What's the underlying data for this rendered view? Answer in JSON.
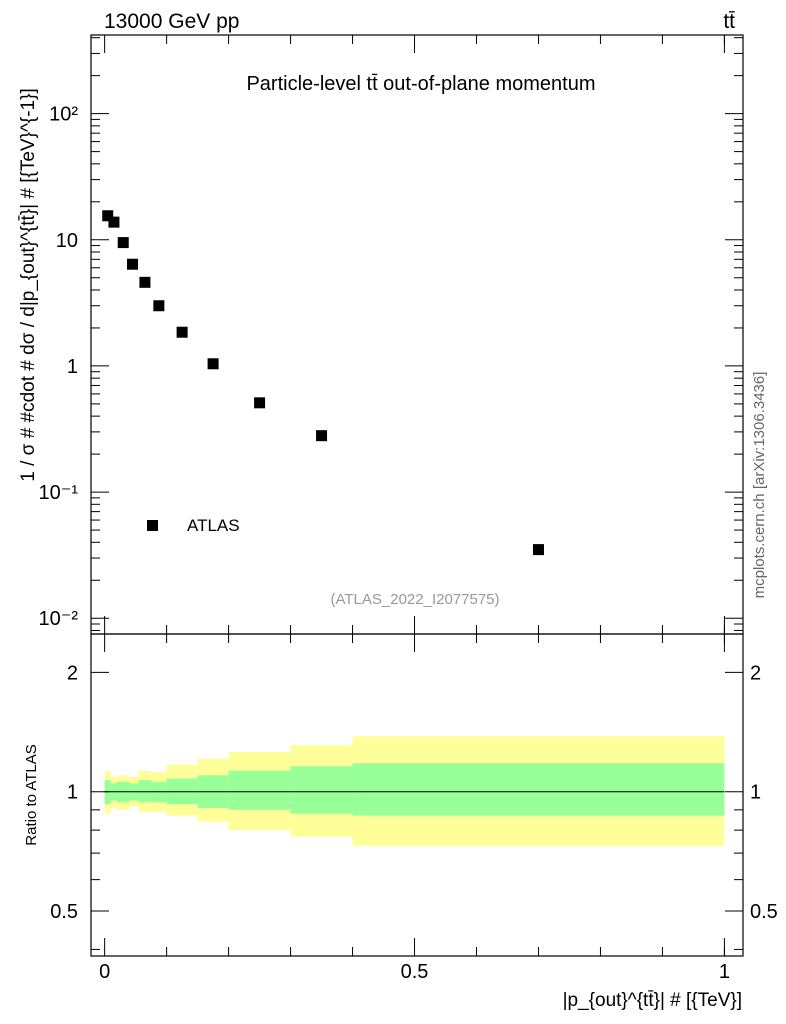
{
  "header": {
    "energy_label": "13000 GeV pp",
    "process_label": "tt̄"
  },
  "side_label": "mcplots.cern.ch [arXiv:1306.3436]",
  "chart_data": [
    {
      "type": "scatter",
      "title": "Particle-level tt̄ out-of-plane momentum",
      "ylabel": "1 / σ # #cdot # dσ / d|p_{out}^{tt̄}| # [{TeV}^{-1}]",
      "yscale": "log",
      "ylim": [
        0.0075,
        420
      ],
      "xlim": [
        -0.022,
        1.03
      ],
      "y_ticks": [
        {
          "value": 0.01,
          "label": "10⁻²"
        },
        {
          "value": 0.1,
          "label": "10⁻¹"
        },
        {
          "value": 1,
          "label": "1"
        },
        {
          "value": 10,
          "label": "10"
        },
        {
          "value": 100,
          "label": "10²"
        }
      ],
      "legend": {
        "entry": "ATLAS",
        "placement": "bottom-left"
      },
      "watermark": "(ATLAS_2022_I2077575)",
      "series": [
        {
          "name": "ATLAS",
          "marker": "square",
          "color": "#000000",
          "x": [
            0.005,
            0.015,
            0.03,
            0.045,
            0.065,
            0.0875,
            0.125,
            0.175,
            0.25,
            0.35,
            0.7
          ],
          "y": [
            15.5,
            13.8,
            9.5,
            6.4,
            4.6,
            3.0,
            1.85,
            1.04,
            0.51,
            0.28,
            0.035
          ]
        }
      ]
    },
    {
      "type": "area",
      "ylabel": "Ratio to ATLAS",
      "xlabel": "|p_{out}^{tt̄}| # [{TeV}]",
      "xlim": [
        -0.022,
        1.03
      ],
      "ylim": [
        0.385,
        2.5
      ],
      "y_ticks_left": [
        {
          "value": 0.5,
          "label": "0.5"
        },
        {
          "value": 1,
          "label": "1"
        },
        {
          "value": 2,
          "label": "2"
        }
      ],
      "y_ticks_right": [
        {
          "value": 0.5,
          "label": "0.5"
        },
        {
          "value": 1,
          "label": "1"
        },
        {
          "value": 2,
          "label": "2"
        }
      ],
      "x_ticks": [
        {
          "value": 0,
          "label": "0"
        },
        {
          "value": 0.5,
          "label": "0.5"
        },
        {
          "value": 1,
          "label": "1"
        }
      ],
      "reference_line": 1.0,
      "bin_edges": [
        0.0,
        0.01,
        0.02,
        0.04,
        0.055,
        0.075,
        0.1,
        0.15,
        0.2,
        0.3,
        0.4,
        1.0
      ],
      "inner_band": {
        "color": "#99ff99",
        "lower": [
          0.93,
          0.95,
          0.94,
          0.95,
          0.94,
          0.94,
          0.93,
          0.91,
          0.9,
          0.88,
          0.87
        ],
        "upper": [
          1.07,
          1.05,
          1.06,
          1.05,
          1.07,
          1.06,
          1.08,
          1.1,
          1.13,
          1.16,
          1.18
        ]
      },
      "outer_band": {
        "color": "#ffff99",
        "lower": [
          0.88,
          0.91,
          0.9,
          0.92,
          0.89,
          0.89,
          0.87,
          0.84,
          0.8,
          0.77,
          0.73
        ],
        "upper": [
          1.13,
          1.09,
          1.1,
          1.09,
          1.13,
          1.12,
          1.17,
          1.21,
          1.26,
          1.31,
          1.38
        ]
      }
    }
  ]
}
